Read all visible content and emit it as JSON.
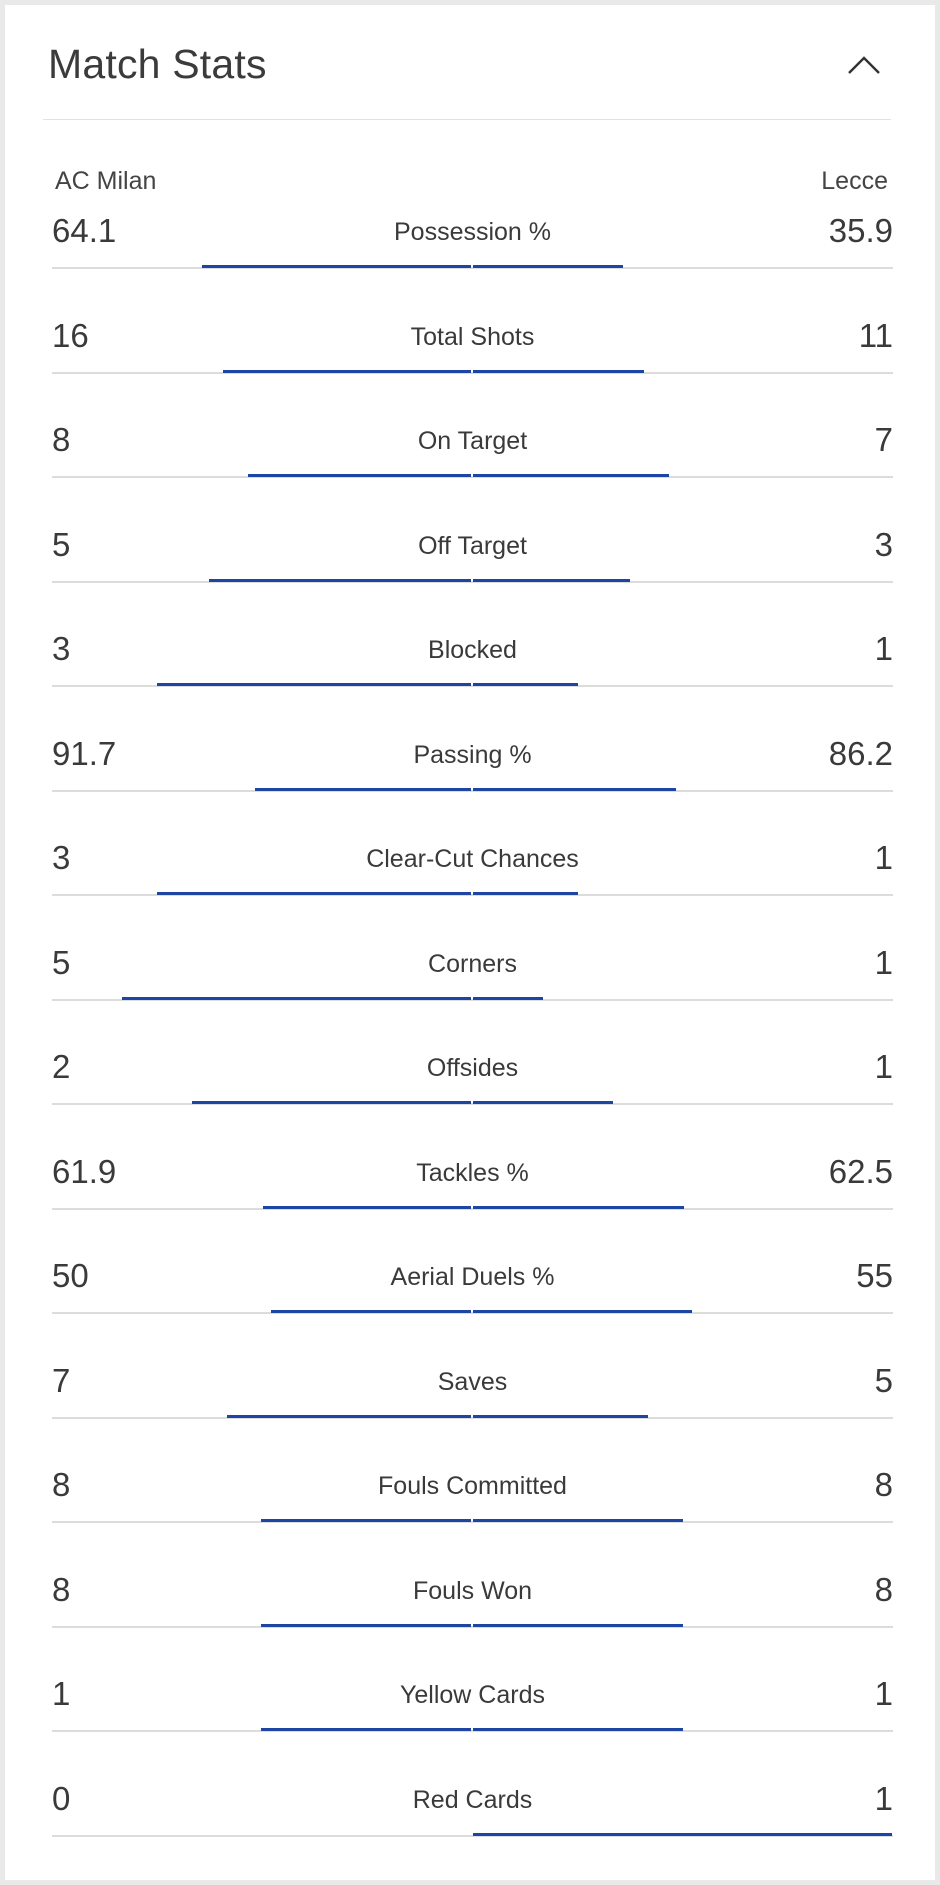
{
  "header": {
    "title": "Match Stats",
    "collapse_icon": "chevron-up-icon"
  },
  "teams": {
    "home": "AC Milan",
    "away": "Lecce"
  },
  "colors": {
    "bar": "#1d45a3",
    "baseline": "#dcdcdc"
  },
  "stats": [
    {
      "label": "Possession %",
      "home": "64.1",
      "away": "35.9",
      "home_share": 0.641,
      "away_share": 0.359
    },
    {
      "label": "Total Shots",
      "home": "16",
      "away": "11",
      "home_share": 0.5926,
      "away_share": 0.4074
    },
    {
      "label": "On Target",
      "home": "8",
      "away": "7",
      "home_share": 0.5333,
      "away_share": 0.4667
    },
    {
      "label": "Off Target",
      "home": "5",
      "away": "3",
      "home_share": 0.625,
      "away_share": 0.375
    },
    {
      "label": "Blocked",
      "home": "3",
      "away": "1",
      "home_share": 0.75,
      "away_share": 0.25
    },
    {
      "label": "Passing %",
      "home": "91.7",
      "away": "86.2",
      "home_share": 0.5154,
      "away_share": 0.4846
    },
    {
      "label": "Clear-Cut Chances",
      "home": "3",
      "away": "1",
      "home_share": 0.75,
      "away_share": 0.25
    },
    {
      "label": "Corners",
      "home": "5",
      "away": "1",
      "home_share": 0.8333,
      "away_share": 0.1667
    },
    {
      "label": "Offsides",
      "home": "2",
      "away": "1",
      "home_share": 0.6667,
      "away_share": 0.3333
    },
    {
      "label": "Tackles %",
      "home": "61.9",
      "away": "62.5",
      "home_share": 0.4976,
      "away_share": 0.5024
    },
    {
      "label": "Aerial Duels %",
      "home": "50",
      "away": "55",
      "home_share": 0.4762,
      "away_share": 0.5238
    },
    {
      "label": "Saves",
      "home": "7",
      "away": "5",
      "home_share": 0.5833,
      "away_share": 0.4167
    },
    {
      "label": "Fouls Committed",
      "home": "8",
      "away": "8",
      "home_share": 0.5,
      "away_share": 0.5
    },
    {
      "label": "Fouls Won",
      "home": "8",
      "away": "8",
      "home_share": 0.5,
      "away_share": 0.5
    },
    {
      "label": "Yellow Cards",
      "home": "1",
      "away": "1",
      "home_share": 0.5,
      "away_share": 0.5
    },
    {
      "label": "Red Cards",
      "home": "0",
      "away": "1",
      "home_share": 0,
      "away_share": 1
    }
  ]
}
